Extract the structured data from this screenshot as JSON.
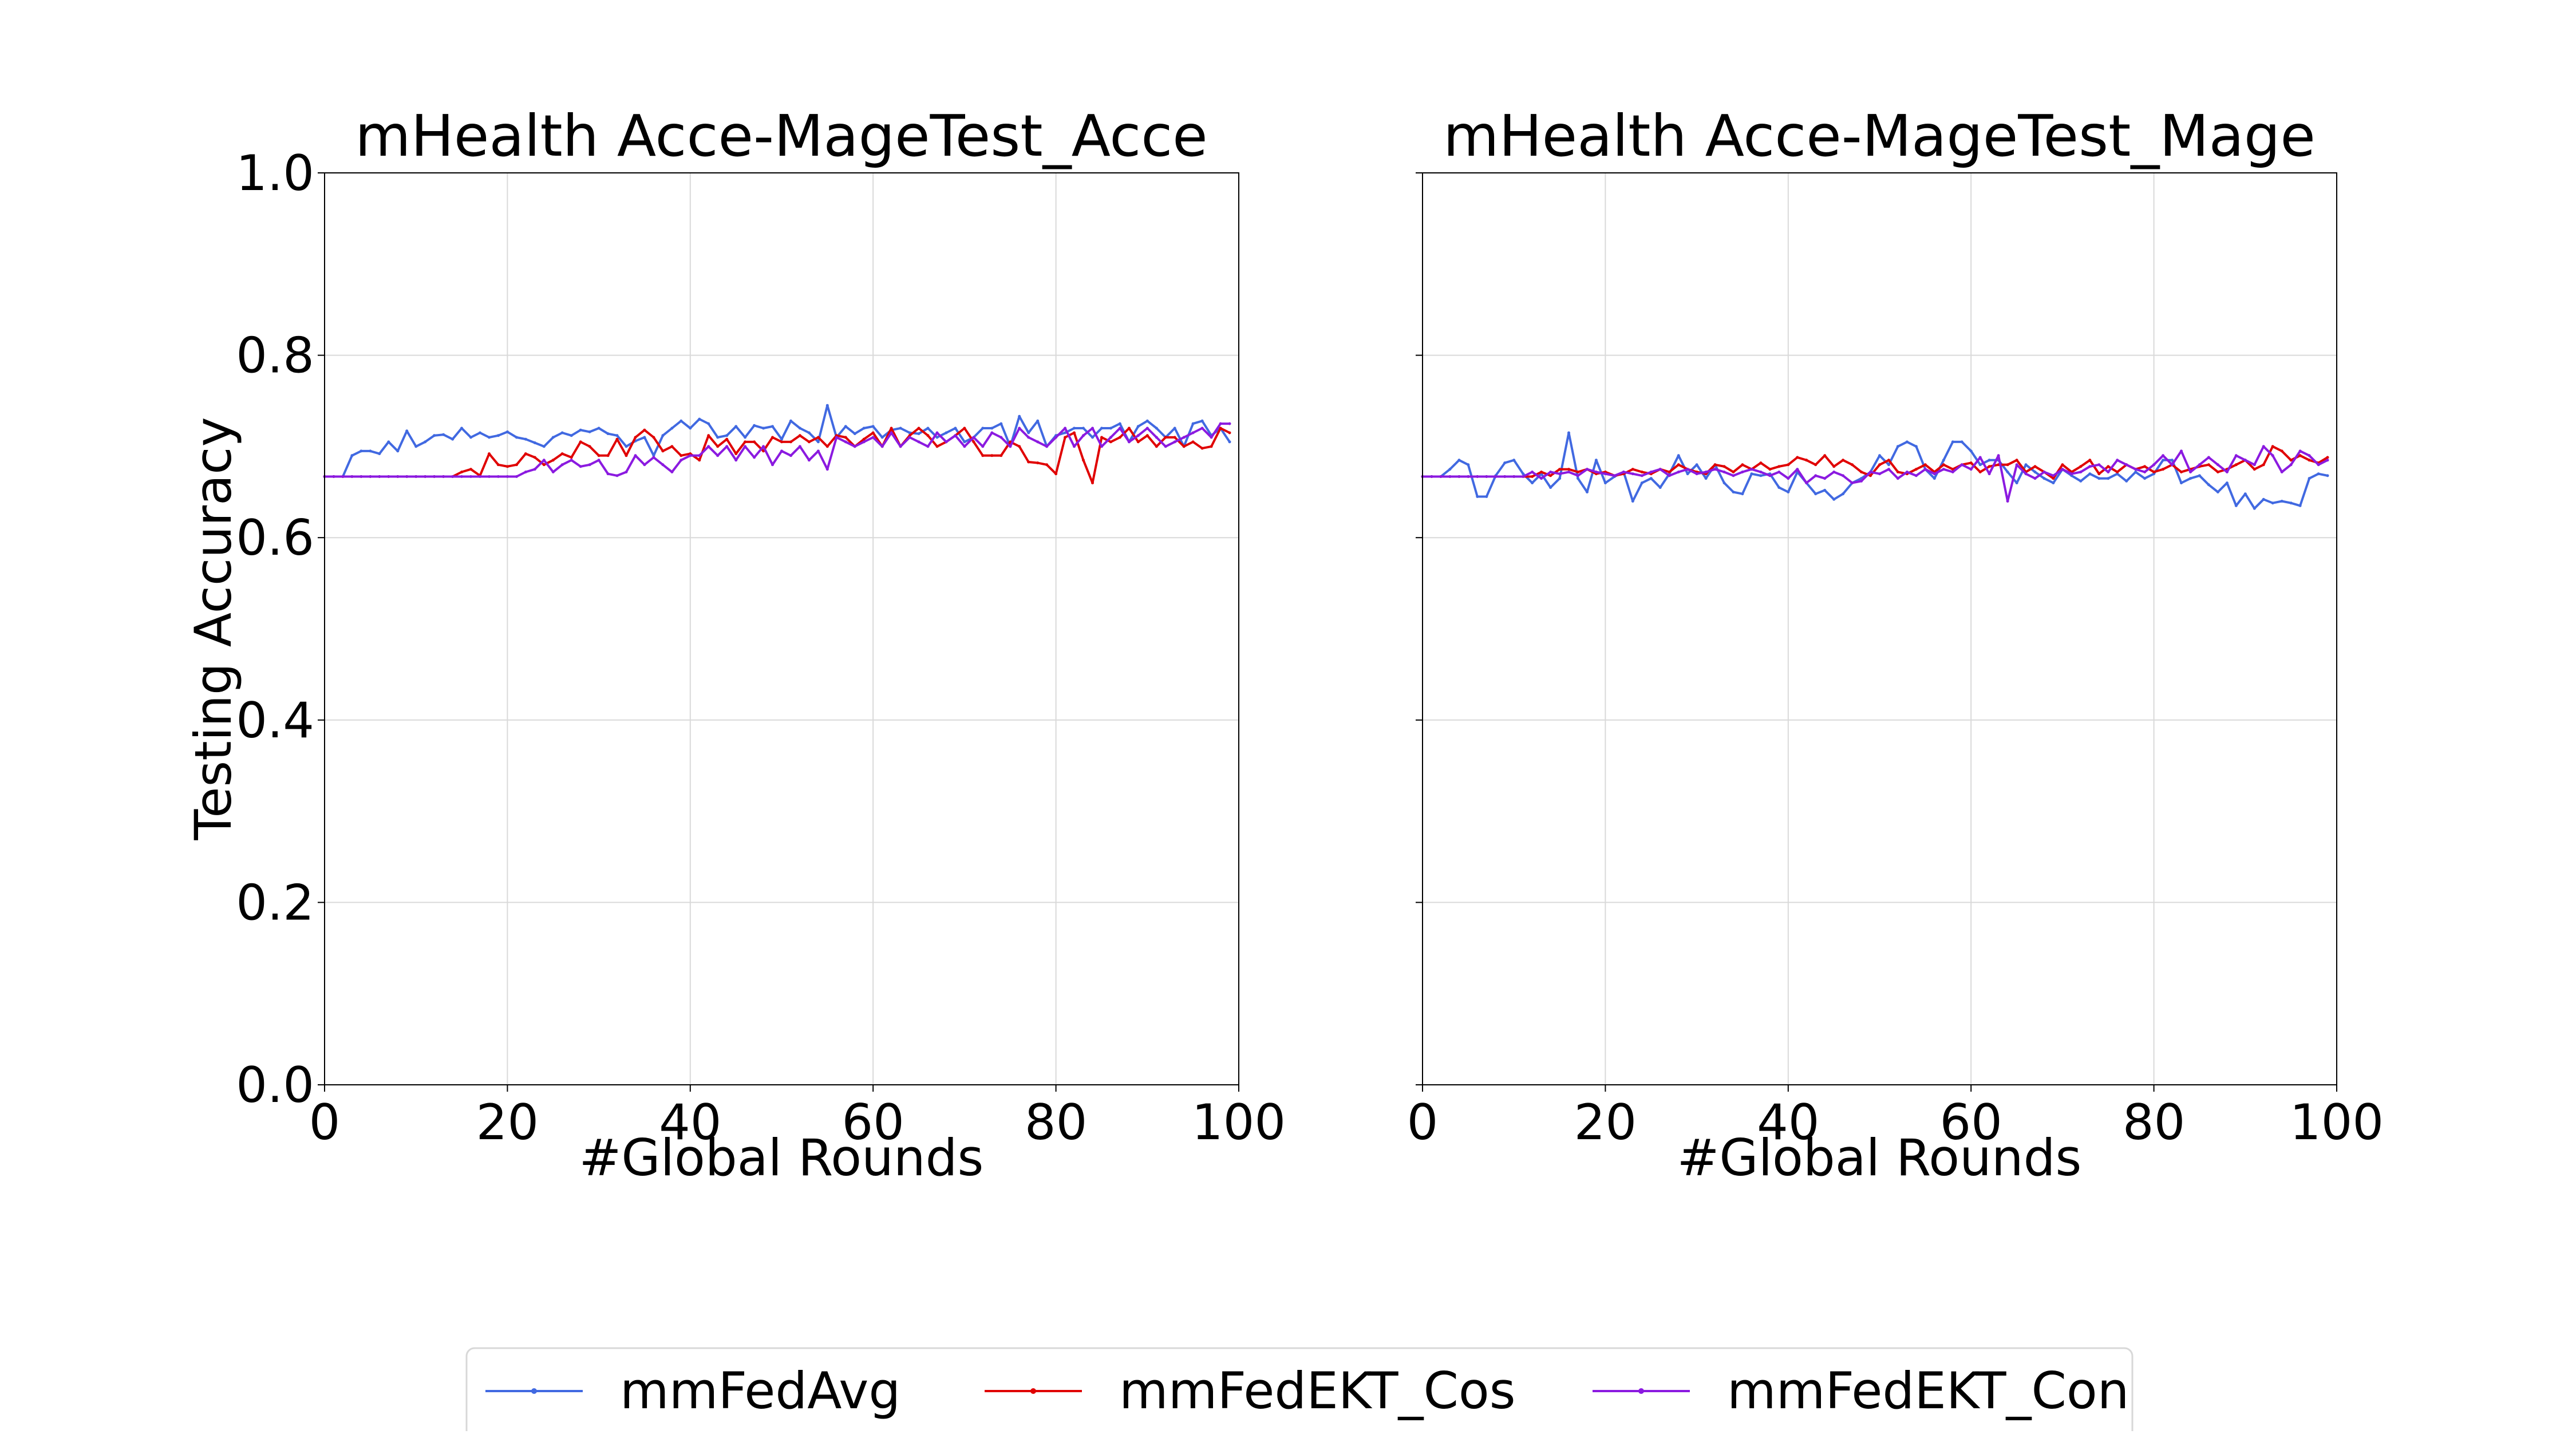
{
  "chart_data": [
    {
      "type": "line",
      "title": "mHealth Acce-MageTest_Acce",
      "xlabel": "#Global Rounds",
      "ylabel": "Testing Accuracy",
      "xlim": [
        0,
        100
      ],
      "ylim": [
        0.0,
        1.0
      ],
      "xticks": [
        "0",
        "20",
        "40",
        "60",
        "80",
        "100"
      ],
      "yticks": [
        "0.0",
        "0.2",
        "0.4",
        "0.6",
        "0.8",
        "1.0"
      ],
      "grid": true,
      "x": [
        0,
        1,
        2,
        3,
        4,
        5,
        6,
        7,
        8,
        9,
        10,
        11,
        12,
        13,
        14,
        15,
        16,
        17,
        18,
        19,
        20,
        21,
        22,
        23,
        24,
        25,
        26,
        27,
        28,
        29,
        30,
        31,
        32,
        33,
        34,
        35,
        36,
        37,
        38,
        39,
        40,
        41,
        42,
        43,
        44,
        45,
        46,
        47,
        48,
        49,
        50,
        51,
        52,
        53,
        54,
        55,
        56,
        57,
        58,
        59,
        60,
        61,
        62,
        63,
        64,
        65,
        66,
        67,
        68,
        69,
        70,
        71,
        72,
        73,
        74,
        75,
        76,
        77,
        78,
        79,
        80,
        81,
        82,
        83,
        84,
        85,
        86,
        87,
        88,
        89,
        90,
        91,
        92,
        93,
        94,
        95,
        96,
        97,
        98,
        99
      ],
      "series": [
        {
          "name": "mmFedAvg",
          "color": "#4169E1",
          "values": [
            0.667,
            0.667,
            0.667,
            0.69,
            0.695,
            0.695,
            0.692,
            0.705,
            0.695,
            0.717,
            0.7,
            0.705,
            0.712,
            0.713,
            0.708,
            0.72,
            0.71,
            0.715,
            0.71,
            0.712,
            0.716,
            0.71,
            0.708,
            0.704,
            0.7,
            0.71,
            0.715,
            0.712,
            0.718,
            0.716,
            0.72,
            0.714,
            0.712,
            0.7,
            0.706,
            0.71,
            0.69,
            0.712,
            0.72,
            0.728,
            0.72,
            0.73,
            0.725,
            0.71,
            0.712,
            0.722,
            0.71,
            0.723,
            0.72,
            0.722,
            0.708,
            0.728,
            0.72,
            0.715,
            0.705,
            0.745,
            0.71,
            0.722,
            0.714,
            0.72,
            0.722,
            0.71,
            0.718,
            0.72,
            0.715,
            0.714,
            0.72,
            0.71,
            0.715,
            0.72,
            0.705,
            0.71,
            0.72,
            0.72,
            0.725,
            0.7,
            0.733,
            0.715,
            0.728,
            0.7,
            0.712,
            0.715,
            0.72,
            0.72,
            0.71,
            0.72,
            0.72,
            0.725,
            0.705,
            0.722,
            0.728,
            0.72,
            0.71,
            0.72,
            0.7,
            0.725,
            0.728,
            0.712,
            0.72,
            0.705
          ]
        },
        {
          "name": "mmFedEKT_Cos",
          "color": "#E00000",
          "values": [
            0.667,
            0.667,
            0.667,
            0.667,
            0.667,
            0.667,
            0.667,
            0.667,
            0.667,
            0.667,
            0.667,
            0.667,
            0.667,
            0.667,
            0.667,
            0.672,
            0.675,
            0.668,
            0.692,
            0.68,
            0.678,
            0.68,
            0.692,
            0.688,
            0.68,
            0.685,
            0.692,
            0.688,
            0.705,
            0.7,
            0.69,
            0.69,
            0.708,
            0.69,
            0.71,
            0.718,
            0.71,
            0.695,
            0.7,
            0.69,
            0.692,
            0.685,
            0.712,
            0.7,
            0.708,
            0.692,
            0.705,
            0.705,
            0.695,
            0.71,
            0.705,
            0.705,
            0.712,
            0.705,
            0.71,
            0.7,
            0.712,
            0.71,
            0.7,
            0.708,
            0.715,
            0.7,
            0.72,
            0.7,
            0.712,
            0.72,
            0.712,
            0.7,
            0.705,
            0.712,
            0.72,
            0.705,
            0.69,
            0.69,
            0.69,
            0.705,
            0.7,
            0.683,
            0.682,
            0.68,
            0.67,
            0.71,
            0.715,
            0.685,
            0.66,
            0.71,
            0.705,
            0.71,
            0.72,
            0.705,
            0.712,
            0.7,
            0.71,
            0.71,
            0.7,
            0.705,
            0.698,
            0.7,
            0.72,
            0.715
          ]
        },
        {
          "name": "mmFedEKT_Con",
          "color": "#8B1AE0",
          "values": [
            0.667,
            0.667,
            0.667,
            0.667,
            0.667,
            0.667,
            0.667,
            0.667,
            0.667,
            0.667,
            0.667,
            0.667,
            0.667,
            0.667,
            0.667,
            0.667,
            0.667,
            0.667,
            0.667,
            0.667,
            0.667,
            0.667,
            0.672,
            0.675,
            0.685,
            0.672,
            0.68,
            0.685,
            0.678,
            0.68,
            0.685,
            0.67,
            0.668,
            0.672,
            0.69,
            0.68,
            0.688,
            0.68,
            0.672,
            0.685,
            0.69,
            0.69,
            0.7,
            0.69,
            0.7,
            0.685,
            0.7,
            0.688,
            0.7,
            0.68,
            0.695,
            0.69,
            0.7,
            0.685,
            0.695,
            0.675,
            0.71,
            0.705,
            0.7,
            0.705,
            0.71,
            0.7,
            0.715,
            0.7,
            0.71,
            0.705,
            0.7,
            0.715,
            0.705,
            0.712,
            0.7,
            0.71,
            0.7,
            0.715,
            0.71,
            0.7,
            0.72,
            0.71,
            0.705,
            0.7,
            0.71,
            0.72,
            0.7,
            0.712,
            0.72,
            0.7,
            0.71,
            0.72,
            0.705,
            0.712,
            0.72,
            0.71,
            0.7,
            0.705,
            0.71,
            0.715,
            0.72,
            0.71,
            0.725,
            0.725
          ]
        }
      ]
    },
    {
      "type": "line",
      "title": "mHealth Acce-MageTest_Mage",
      "xlabel": "#Global Rounds",
      "ylabel": "",
      "xlim": [
        0,
        100
      ],
      "ylim": [
        0.0,
        1.0
      ],
      "xticks": [
        "0",
        "20",
        "40",
        "60",
        "80",
        "100"
      ],
      "yticks": [],
      "grid": true,
      "x": [
        0,
        1,
        2,
        3,
        4,
        5,
        6,
        7,
        8,
        9,
        10,
        11,
        12,
        13,
        14,
        15,
        16,
        17,
        18,
        19,
        20,
        21,
        22,
        23,
        24,
        25,
        26,
        27,
        28,
        29,
        30,
        31,
        32,
        33,
        34,
        35,
        36,
        37,
        38,
        39,
        40,
        41,
        42,
        43,
        44,
        45,
        46,
        47,
        48,
        49,
        50,
        51,
        52,
        53,
        54,
        55,
        56,
        57,
        58,
        59,
        60,
        61,
        62,
        63,
        64,
        65,
        66,
        67,
        68,
        69,
        70,
        71,
        72,
        73,
        74,
        75,
        76,
        77,
        78,
        79,
        80,
        81,
        82,
        83,
        84,
        85,
        86,
        87,
        88,
        89,
        90,
        91,
        92,
        93,
        94,
        95,
        96,
        97,
        98,
        99
      ],
      "series": [
        {
          "name": "mmFedAvg",
          "color": "#4169E1",
          "values": [
            0.667,
            0.667,
            0.667,
            0.675,
            0.685,
            0.68,
            0.645,
            0.645,
            0.668,
            0.682,
            0.685,
            0.67,
            0.66,
            0.67,
            0.655,
            0.665,
            0.715,
            0.665,
            0.65,
            0.685,
            0.66,
            0.667,
            0.672,
            0.64,
            0.66,
            0.665,
            0.655,
            0.67,
            0.69,
            0.67,
            0.68,
            0.665,
            0.68,
            0.66,
            0.65,
            0.648,
            0.67,
            0.668,
            0.67,
            0.655,
            0.65,
            0.672,
            0.66,
            0.648,
            0.652,
            0.642,
            0.648,
            0.66,
            0.665,
            0.672,
            0.69,
            0.68,
            0.7,
            0.705,
            0.7,
            0.675,
            0.665,
            0.685,
            0.705,
            0.705,
            0.695,
            0.68,
            0.685,
            0.685,
            0.672,
            0.66,
            0.68,
            0.672,
            0.665,
            0.66,
            0.675,
            0.668,
            0.662,
            0.67,
            0.665,
            0.665,
            0.67,
            0.662,
            0.672,
            0.665,
            0.67,
            0.685,
            0.685,
            0.66,
            0.665,
            0.668,
            0.658,
            0.65,
            0.66,
            0.635,
            0.648,
            0.632,
            0.642,
            0.638,
            0.64,
            0.638,
            0.635,
            0.665,
            0.67,
            0.668
          ]
        },
        {
          "name": "mmFedEKT_Cos",
          "color": "#E00000",
          "values": [
            0.667,
            0.667,
            0.667,
            0.667,
            0.667,
            0.667,
            0.667,
            0.667,
            0.667,
            0.667,
            0.667,
            0.667,
            0.667,
            0.672,
            0.668,
            0.675,
            0.675,
            0.672,
            0.675,
            0.67,
            0.672,
            0.668,
            0.67,
            0.675,
            0.672,
            0.67,
            0.675,
            0.672,
            0.68,
            0.675,
            0.672,
            0.67,
            0.68,
            0.678,
            0.672,
            0.68,
            0.675,
            0.682,
            0.675,
            0.678,
            0.68,
            0.688,
            0.685,
            0.68,
            0.69,
            0.678,
            0.685,
            0.68,
            0.672,
            0.668,
            0.68,
            0.685,
            0.672,
            0.67,
            0.675,
            0.68,
            0.672,
            0.68,
            0.675,
            0.68,
            0.682,
            0.672,
            0.678,
            0.68,
            0.68,
            0.685,
            0.672,
            0.678,
            0.672,
            0.665,
            0.68,
            0.672,
            0.678,
            0.685,
            0.67,
            0.678,
            0.672,
            0.68,
            0.675,
            0.678,
            0.672,
            0.675,
            0.68,
            0.672,
            0.675,
            0.678,
            0.68,
            0.672,
            0.675,
            0.68,
            0.685,
            0.675,
            0.68,
            0.7,
            0.695,
            0.685,
            0.69,
            0.685,
            0.682,
            0.688
          ]
        },
        {
          "name": "mmFedEKT_Con",
          "color": "#8B1AE0",
          "values": [
            0.667,
            0.667,
            0.667,
            0.667,
            0.667,
            0.667,
            0.667,
            0.667,
            0.667,
            0.667,
            0.667,
            0.667,
            0.672,
            0.665,
            0.672,
            0.67,
            0.672,
            0.668,
            0.675,
            0.672,
            0.67,
            0.668,
            0.672,
            0.67,
            0.668,
            0.672,
            0.675,
            0.668,
            0.672,
            0.675,
            0.67,
            0.672,
            0.675,
            0.672,
            0.668,
            0.672,
            0.675,
            0.672,
            0.668,
            0.672,
            0.665,
            0.675,
            0.66,
            0.668,
            0.665,
            0.672,
            0.668,
            0.66,
            0.662,
            0.672,
            0.67,
            0.675,
            0.665,
            0.672,
            0.668,
            0.675,
            0.67,
            0.675,
            0.672,
            0.68,
            0.675,
            0.688,
            0.67,
            0.69,
            0.64,
            0.68,
            0.67,
            0.665,
            0.672,
            0.668,
            0.675,
            0.67,
            0.672,
            0.678,
            0.68,
            0.672,
            0.685,
            0.68,
            0.675,
            0.672,
            0.68,
            0.69,
            0.68,
            0.695,
            0.672,
            0.68,
            0.688,
            0.68,
            0.672,
            0.69,
            0.685,
            0.68,
            0.7,
            0.69,
            0.672,
            0.68,
            0.695,
            0.69,
            0.68,
            0.685
          ]
        }
      ]
    }
  ],
  "legend": {
    "placement": "bottom-center",
    "entries": [
      "mmFedAvg",
      "mmFedEKT_Cos",
      "mmFedEKT_Con"
    ]
  }
}
